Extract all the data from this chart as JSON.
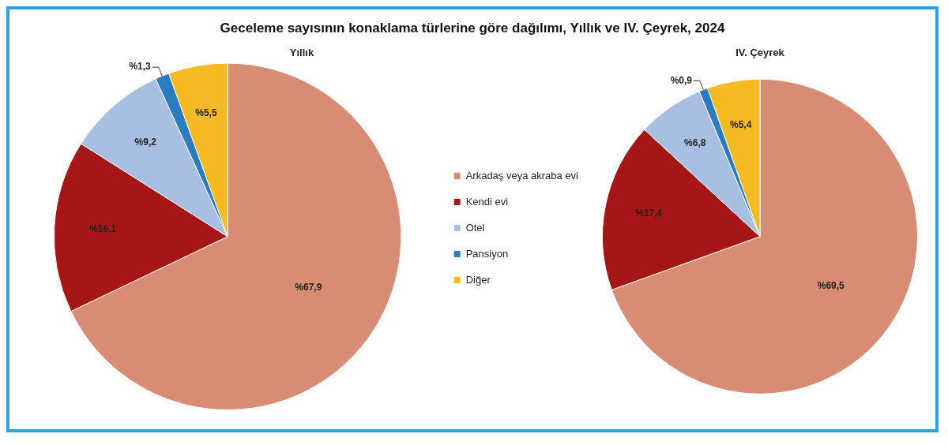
{
  "chart_data": [
    {
      "type": "pie",
      "title": "Geceleme sayısının konaklama türlerine göre dağılımı, Yıllık ve IV. Çeyrek, 2024",
      "subtitle": "Yıllık",
      "categories": [
        "Arkadaş veya akraba evi",
        "Kendi evi",
        "Otel",
        "Pansiyon",
        "Diğer"
      ],
      "values": [
        67.9,
        16.1,
        9.2,
        1.3,
        5.5
      ],
      "value_labels": [
        "%67,9",
        "%16,1",
        "%9,2",
        "%1,3",
        "%5,5"
      ],
      "colors": [
        "#d98c74",
        "#a61616",
        "#a9bfe1",
        "#2b7bbf",
        "#f6ba22"
      ],
      "legend": "right"
    },
    {
      "type": "pie",
      "subtitle": "IV. Çeyrek",
      "categories": [
        null,
        null,
        null,
        null,
        null
      ],
      "values": [
        69.5,
        17.4,
        6.8,
        0.9,
        5.4
      ],
      "value_labels": [
        "%69,5",
        "%17,4",
        "%6,8",
        "%0,9",
        "%5,4"
      ],
      "colors": [
        "#d98c74",
        "#a61616",
        "#a9bfe1",
        "#2b7bbf",
        "#f6ba22"
      ],
      "legend": false
    }
  ]
}
